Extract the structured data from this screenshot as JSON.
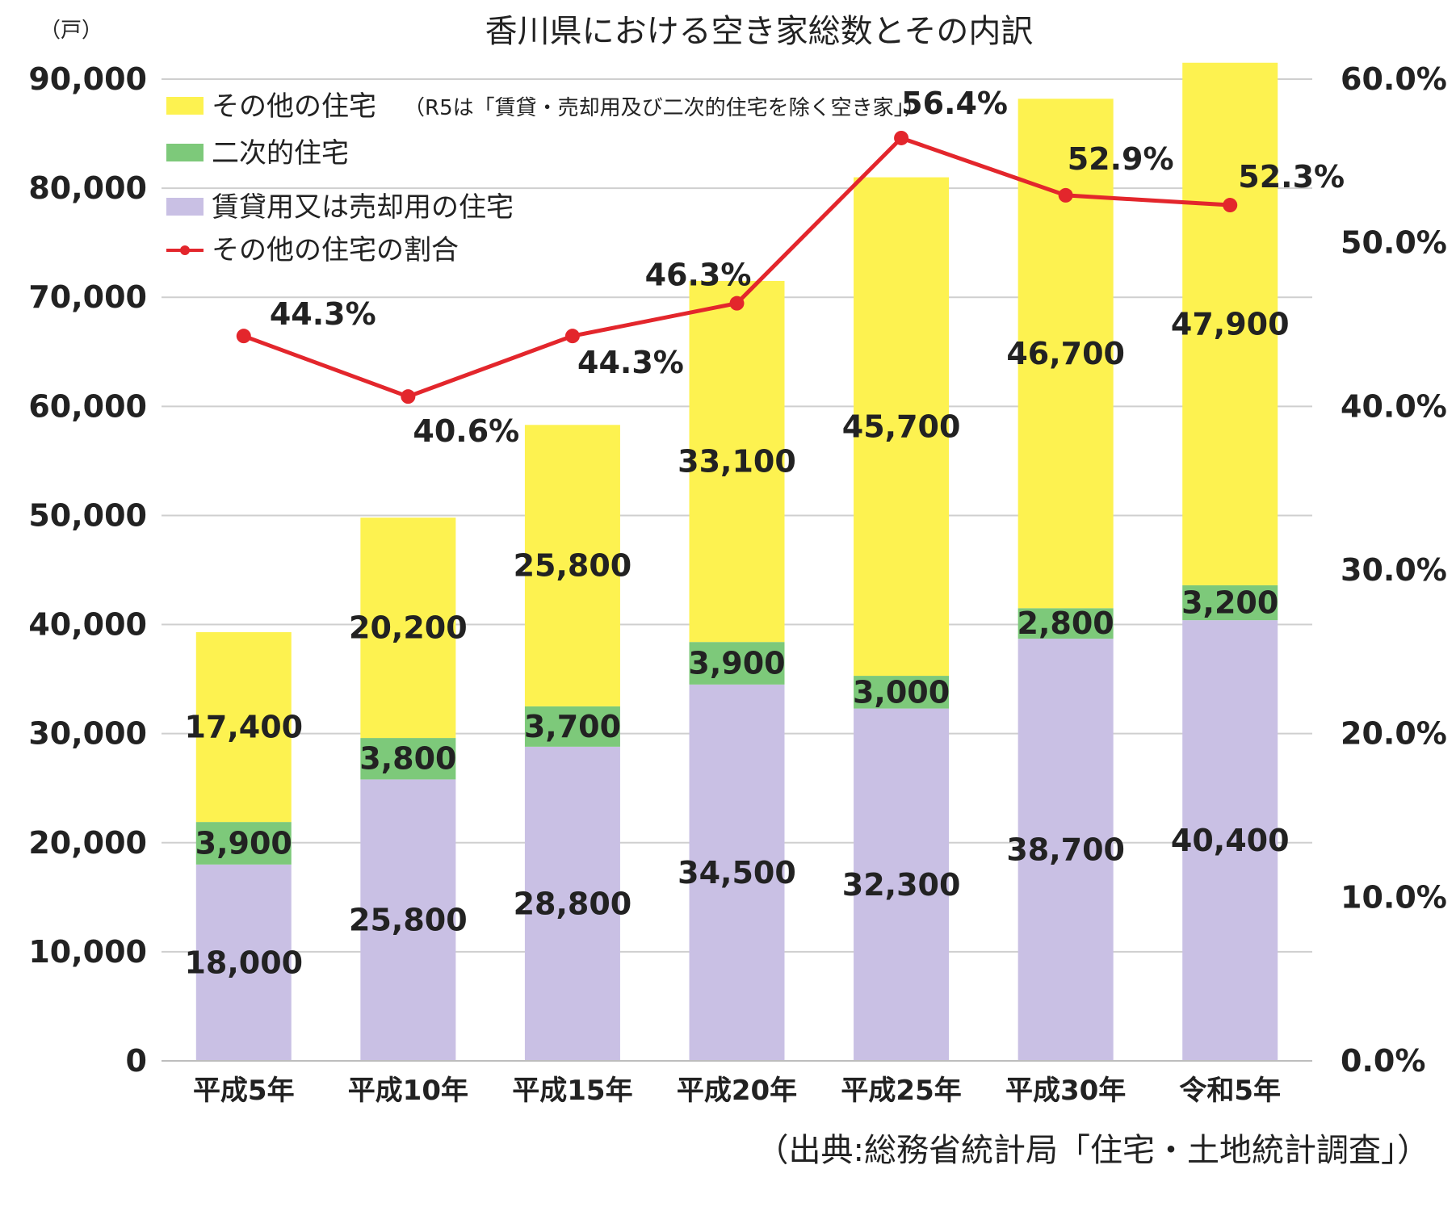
{
  "chart_data": {
    "type": "bar",
    "stacked": true,
    "title": "香川県における空き家総数とその内訳",
    "ylabel_left": "（戸）",
    "categories": [
      "平成5年",
      "平成10年",
      "平成15年",
      "平成20年",
      "平成25年",
      "平成30年",
      "令和5年"
    ],
    "series": [
      {
        "name": "賃貸用又は売却用の住宅",
        "color": "#c9c0e4",
        "values": [
          18000,
          25800,
          28800,
          34500,
          32300,
          38700,
          40400
        ],
        "labels": [
          "18,000",
          "25,800",
          "28,800",
          "34,500",
          "32,300",
          "38,700",
          "40,400"
        ]
      },
      {
        "name": "二次的住宅",
        "color": "#7dc97a",
        "values": [
          3900,
          3800,
          3700,
          3900,
          3000,
          2800,
          3200
        ],
        "labels": [
          "3,900",
          "3,800",
          "3,700",
          "3,900",
          "3,000",
          "2,800",
          "3,200"
        ]
      },
      {
        "name": "その他の住宅",
        "name_note": "（R5は「賃貸・売却用及び二次的住宅を除く空き家」）",
        "color": "#fdf250",
        "values": [
          17400,
          20200,
          25800,
          33100,
          45700,
          46700,
          47900
        ],
        "labels": [
          "17,400",
          "20,200",
          "25,800",
          "33,100",
          "45,700",
          "46,700",
          "47,900"
        ]
      }
    ],
    "line_series": {
      "name": "その他の住宅の割合",
      "color": "#e3262c",
      "axis": "right",
      "values": [
        44.3,
        40.6,
        44.3,
        46.3,
        56.4,
        52.9,
        52.3
      ],
      "labels": [
        "44.3%",
        "40.6%",
        "44.3%",
        "46.3%",
        "56.4%",
        "52.9%",
        "52.3%"
      ]
    },
    "ylim_left": [
      0,
      90000
    ],
    "yticks_left": [
      "0",
      "10,000",
      "20,000",
      "30,000",
      "40,000",
      "50,000",
      "60,000",
      "70,000",
      "80,000",
      "90,000"
    ],
    "ylim_right": [
      0,
      60
    ],
    "yticks_right": [
      "0.0%",
      "10.0%",
      "20.0%",
      "30.0%",
      "40.0%",
      "50.0%",
      "60.0%"
    ],
    "grid": true,
    "legend_position": "top-left",
    "source": "（出典:総務省統計局「住宅・土地統計調査」）"
  }
}
